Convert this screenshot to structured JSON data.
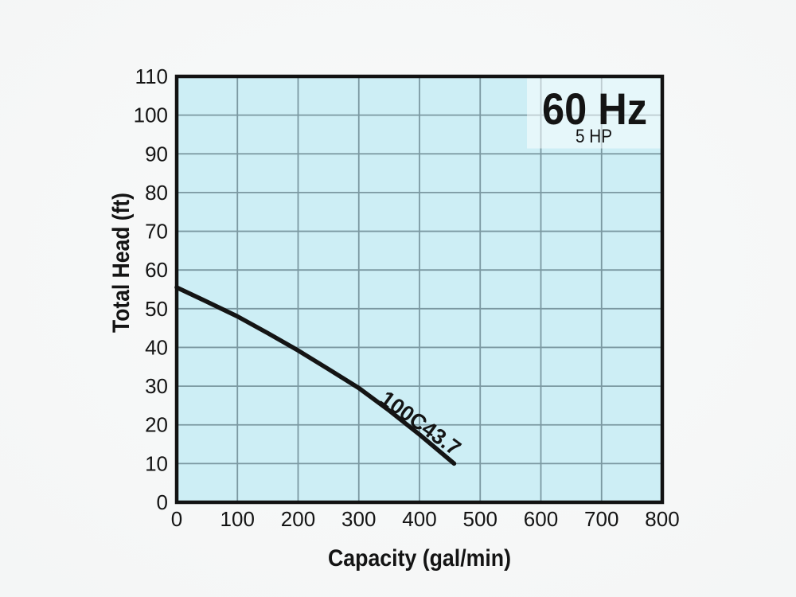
{
  "chart_data": {
    "type": "line",
    "title": "",
    "xlabel": "Capacity (gal/min)",
    "ylabel": "Total Head (ft)",
    "xlim": [
      0,
      800
    ],
    "ylim": [
      0,
      110
    ],
    "x_ticks": [
      0,
      100,
      200,
      300,
      400,
      500,
      600,
      700,
      800
    ],
    "y_ticks": [
      0,
      10,
      20,
      30,
      40,
      50,
      60,
      70,
      80,
      90,
      100,
      110
    ],
    "grid": "on",
    "legend": "none",
    "annotations": {
      "frequency": "60 Hz",
      "power": "5 HP"
    },
    "series": [
      {
        "name": "100C43.7",
        "points": [
          [
            0,
            55.5
          ],
          [
            50,
            51.8
          ],
          [
            100,
            48.0
          ],
          [
            150,
            43.7
          ],
          [
            200,
            39.2
          ],
          [
            250,
            34.4
          ],
          [
            300,
            29.5
          ],
          [
            350,
            23.7
          ],
          [
            400,
            17.5
          ],
          [
            457,
            10.0
          ]
        ]
      }
    ],
    "colors": {
      "plot_bg": "#cdeef5",
      "grid_line": "#7b98a1",
      "curve": "#141414",
      "frame": "#121212",
      "text": "#141414",
      "annotation_box": "rgba(255,255,255,0.5)"
    }
  }
}
